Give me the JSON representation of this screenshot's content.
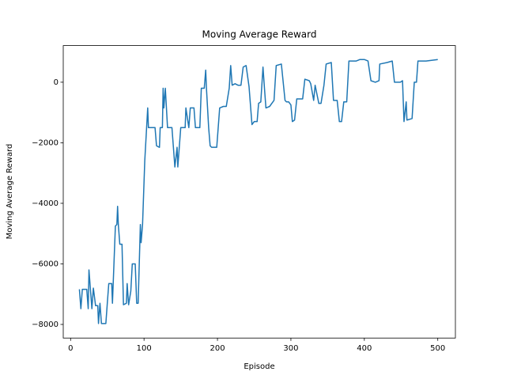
{
  "chart_data": {
    "type": "line",
    "title": "Moving Average Reward",
    "x_label": "Episode",
    "y_label": "Moving Average Reward",
    "xlim": [
      -10,
      524
    ],
    "ylim": [
      -8450,
      1210
    ],
    "xticks": [
      0,
      100,
      200,
      300,
      400,
      500
    ],
    "yticks": [
      {
        "value": -8000,
        "label": "−8000"
      },
      {
        "value": -6000,
        "label": "−6000"
      },
      {
        "value": -4000,
        "label": "−4000"
      },
      {
        "value": -2000,
        "label": "−2000"
      },
      0
    ],
    "series": [
      {
        "color": "#1f77b4",
        "x": [
          12,
          14,
          16,
          22,
          24,
          25,
          27,
          29,
          31,
          34,
          37,
          38,
          40,
          42,
          48,
          50,
          52,
          56,
          57,
          61,
          63,
          64,
          65,
          67,
          70,
          72,
          76,
          77,
          79,
          82,
          84,
          88,
          90,
          92,
          95,
          96,
          98,
          101,
          105,
          106,
          115,
          117,
          121,
          122,
          125,
          126,
          127,
          129,
          132,
          138,
          140,
          142,
          145,
          146,
          148,
          150,
          156,
          157,
          161,
          163,
          168,
          170,
          176,
          178,
          182,
          184,
          185,
          188,
          190,
          192,
          199,
          203,
          208,
          212,
          216,
          218,
          220,
          224,
          228,
          232,
          235,
          239,
          243,
          247,
          250,
          254,
          256,
          259,
          262,
          264,
          266,
          271,
          277,
          280,
          287,
          292,
          294,
          297,
          300,
          302,
          305,
          308,
          312,
          316,
          319,
          325,
          327,
          331,
          333,
          338,
          341,
          345,
          348,
          355,
          358,
          363,
          366,
          369,
          372,
          376,
          379,
          389,
          394,
          400,
          405,
          409,
          415,
          420,
          421,
          431,
          438,
          441,
          449,
          452,
          454,
          457,
          458,
          465,
          468,
          471,
          473,
          484,
          500
        ],
        "values": [
          -6840,
          -7480,
          -6840,
          -6840,
          -7480,
          -6200,
          -6840,
          -7480,
          -6800,
          -7380,
          -7380,
          -7970,
          -7300,
          -7970,
          -7970,
          -7300,
          -6650,
          -6650,
          -7300,
          -4750,
          -4700,
          -4100,
          -4700,
          -5350,
          -5350,
          -7350,
          -7300,
          -6650,
          -7350,
          -6900,
          -6000,
          -6000,
          -7300,
          -7300,
          -4700,
          -5300,
          -4700,
          -2600,
          -850,
          -1500,
          -1500,
          -2100,
          -2150,
          -1500,
          -1500,
          -200,
          -850,
          -200,
          -1500,
          -1500,
          -2150,
          -2800,
          -2150,
          -2800,
          -2150,
          -1500,
          -1500,
          -850,
          -1500,
          -850,
          -850,
          -1500,
          -1500,
          -200,
          -200,
          400,
          -200,
          -1500,
          -2100,
          -2150,
          -2150,
          -850,
          -800,
          -800,
          -200,
          550,
          -100,
          -50,
          -100,
          -100,
          500,
          550,
          -150,
          -1400,
          -1300,
          -1300,
          -700,
          -650,
          500,
          -200,
          -850,
          -800,
          -600,
          550,
          600,
          -600,
          -650,
          -650,
          -750,
          -1300,
          -1250,
          -550,
          -550,
          -550,
          100,
          50,
          -50,
          -600,
          -100,
          -700,
          -700,
          -100,
          600,
          650,
          -600,
          -600,
          -1300,
          -1300,
          -650,
          -650,
          700,
          700,
          750,
          750,
          700,
          50,
          0,
          50,
          600,
          650,
          700,
          0,
          0,
          50,
          -1300,
          -650,
          -1250,
          -1200,
          0,
          0,
          700,
          700,
          750
        ]
      }
    ]
  }
}
